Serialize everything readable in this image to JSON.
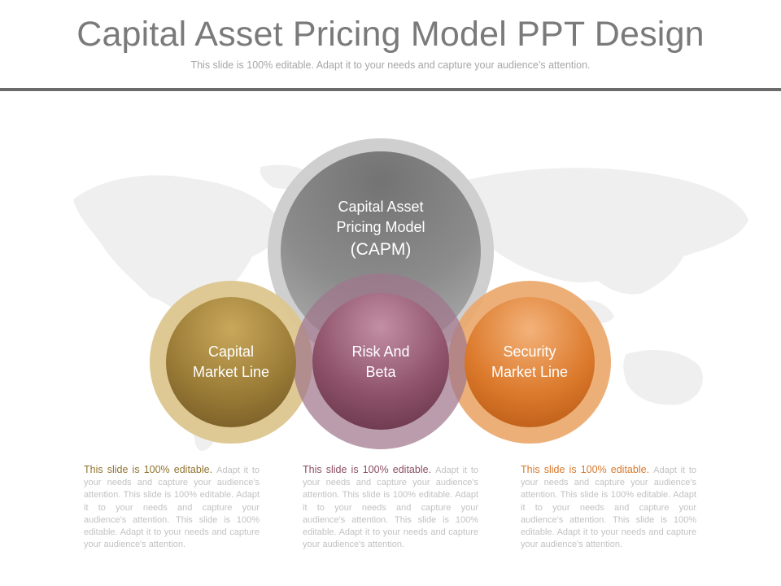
{
  "header": {
    "title": "Capital Asset Pricing Model PPT Design",
    "subtitle": "This slide is 100% editable. Adapt it to your needs and capture your audience’s attention."
  },
  "diagram": {
    "center": {
      "lines": [
        "Capital Asset",
        "Pricing Model",
        "(CAPM)"
      ],
      "color": "#8a8a8a"
    },
    "nodes": [
      {
        "lines": [
          "Capital",
          "Market Line"
        ],
        "color": "#8f7330",
        "ring": "#d9c38f"
      },
      {
        "lines": [
          "Risk And",
          "Beta"
        ],
        "color": "#8a4c63",
        "ring": "#b48ea0"
      },
      {
        "lines": [
          "Security",
          "Market Line"
        ],
        "color": "#d8782a",
        "ring": "#eba66b"
      }
    ]
  },
  "descriptions": [
    {
      "lead": "This slide is 100% editable.",
      "body": "Adapt it to your needs and capture your audience's attention. This slide is 100% editable. Adapt it to your needs and capture your audience's attention. This slide is 100% editable. Adapt it to your needs and capture your audience's attention.",
      "lead_color": "#8f7330"
    },
    {
      "lead": "This slide is 100% editable.",
      "body": "Adapt it to your needs and capture your audience's attention. This slide is 100% editable. Adapt it to your needs and capture your audience's attention. This slide is 100% editable. Adapt it to your needs and capture your audience's attention.",
      "lead_color": "#8a4c63"
    },
    {
      "lead": "This slide is 100% editable.",
      "body": "Adapt it to your needs and capture your audience's attention. This slide is 100% editable. Adapt it to your needs and capture your audience's attention. This slide is 100% editable. Adapt it to your needs and capture your audience's attention.",
      "lead_color": "#d8782a"
    }
  ]
}
